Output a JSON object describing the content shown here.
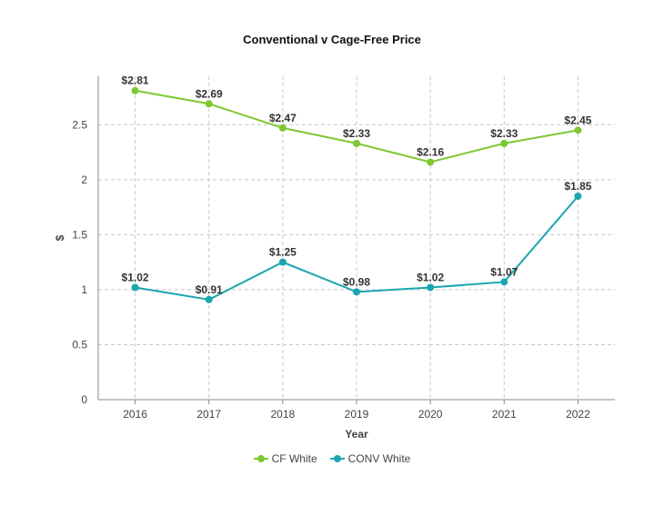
{
  "chart_data": {
    "type": "line",
    "title": "Conventional v Cage-Free Price",
    "xlabel": "Year",
    "ylabel": "$",
    "x": [
      "2016",
      "2017",
      "2018",
      "2019",
      "2020",
      "2021",
      "2022"
    ],
    "ylim": [
      0,
      2.94
    ],
    "yticks": [
      0,
      0.5,
      1,
      1.5,
      2,
      2.5
    ],
    "ytick_labels": [
      "0",
      "0.5",
      "1",
      "1.5",
      "2",
      "2.5"
    ],
    "grid": true,
    "legend_position": "bottom",
    "series": [
      {
        "name": "CF White",
        "color": "#7dc832",
        "values": [
          2.81,
          2.69,
          2.47,
          2.33,
          2.16,
          2.33,
          2.45
        ],
        "labels": [
          "$2.81",
          "$2.69",
          "$2.47",
          "$2.33",
          "$2.16",
          "$2.33",
          "$2.45"
        ]
      },
      {
        "name": "CONV White",
        "color": "#1aa6b0",
        "values": [
          1.02,
          0.91,
          1.25,
          0.98,
          1.02,
          1.07,
          1.85
        ],
        "labels": [
          "$1.02",
          "$0.91",
          "$1.25",
          "$0.98",
          "$1.02",
          "$1.07",
          "$1.85"
        ]
      }
    ]
  }
}
